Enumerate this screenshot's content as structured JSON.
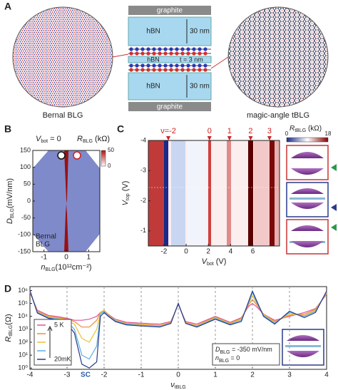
{
  "panel_labels": [
    "A",
    "B",
    "C",
    "D"
  ],
  "panel_a": {
    "top": "graphite",
    "layer1": "hBN",
    "thick1": "30 nm",
    "spacer": "hBN",
    "spacer_thick": "t = 3 nm",
    "layer2": "hBN",
    "thick2": "30 nm",
    "bottom": "graphite",
    "left_caption": "Bernal BLG",
    "right_caption": "magic-angle tBLG"
  },
  "chart_data": [
    {
      "type": "heatmap",
      "title": {
        "main": "V",
        "sub": "bot",
        "rest": " = 0"
      },
      "colorbar_label": {
        "main": "R",
        "sub": "BLG",
        "rest": " (kΩ)"
      },
      "colorbar_lim": [
        0,
        50
      ],
      "colorbar_ticks": [
        0,
        50
      ],
      "annotation_lines": [
        "Bernal",
        "BLG"
      ],
      "x_label": {
        "main": "n",
        "sub": "BLG",
        "rest": "(10¹²cm⁻²)"
      },
      "y_label": {
        "main": "D",
        "sub": "BLG",
        "rest": "(mV/nm)"
      },
      "xlim": [
        -1.5,
        1.5
      ],
      "xticks": [
        -1,
        0,
        1
      ],
      "ylim": [
        -150,
        150
      ],
      "yticks": [
        -150,
        -100,
        -50,
        0,
        50,
        100,
        150
      ]
    },
    {
      "type": "heatmap",
      "colorbar_label": {
        "main": "R",
        "sub": "tBLG",
        "rest": " (kΩ)"
      },
      "colorbar_lim": [
        0,
        18
      ],
      "colorbar_ticks": [
        0,
        18
      ],
      "x_label": {
        "main": "V",
        "sub": "bot",
        "rest": " (V)"
      },
      "y_label": {
        "main": "V",
        "sub": "top",
        "rest": " (V)"
      },
      "xlim": [
        -3.4,
        8.4
      ],
      "xticks": [
        -2,
        0,
        2,
        4,
        6
      ],
      "ylim": [
        -0.5,
        -4
      ],
      "yticks": [
        -1,
        -2,
        -3,
        -4
      ],
      "filling_annotations": [
        {
          "text": "ν=-2",
          "x": -1.6
        },
        {
          "text": "0",
          "x": 2.1
        },
        {
          "text": "1",
          "x": 3.9
        },
        {
          "text": "2",
          "x": 5.8
        },
        {
          "text": "3",
          "x": 7.5
        }
      ]
    },
    {
      "type": "line",
      "x_label": {
        "main": "ν",
        "sub": "tBLG"
      },
      "y_label": {
        "main": "R",
        "sub": "tBLG",
        "rest": "(Ω)"
      },
      "xlim": [
        -4,
        4
      ],
      "xticks": [
        -4,
        -3,
        -2,
        -1,
        0,
        1,
        2,
        3,
        4
      ],
      "ylim": [
        0.8,
        2000000
      ],
      "yscale": "log",
      "yticks": [
        {
          "value": 1,
          "label": "10⁰"
        },
        {
          "value": 10,
          "label": "10¹"
        },
        {
          "value": 100,
          "label": "10²"
        },
        {
          "value": 1000,
          "label": "10³"
        },
        {
          "value": 10000,
          "label": "10⁴"
        },
        {
          "value": 100000,
          "label": "10⁵"
        },
        {
          "value": 1000000,
          "label": "10⁶"
        }
      ],
      "vlines": [
        -3,
        -2,
        -1,
        0,
        1,
        2,
        3
      ],
      "annotation": "SC",
      "annotation_x": -2.5,
      "note": [
        {
          "main": "D",
          "sub": "BLG",
          "rest": " = -350 mV/nm"
        },
        {
          "main": "n",
          "sub": "BLG",
          "rest": " = 0"
        }
      ],
      "x": [
        -4,
        -3.8,
        -3.5,
        -3.2,
        -3,
        -2.8,
        -2.6,
        -2.4,
        -2.2,
        -2.1,
        -2,
        -1.9,
        -1.7,
        -1.4,
        -1,
        -0.5,
        -0.2,
        0,
        0.2,
        0.5,
        1,
        1.4,
        1.7,
        1.9,
        2,
        2.1,
        2.3,
        2.6,
        3,
        3.4,
        3.7,
        4
      ],
      "series": [
        {
          "name": "5 K",
          "color": "#e0559a",
          "values": [
            700000,
            30000,
            12000,
            9000,
            7000,
            5000,
            5000,
            6000,
            10000,
            20000,
            30000,
            15000,
            6000,
            3500,
            3000,
            2500,
            4000,
            80000,
            4000,
            2500,
            10000,
            3500,
            8000,
            60000,
            100000,
            60000,
            15000,
            5000,
            10000,
            20000,
            40000,
            500000
          ]
        },
        {
          "color": "#f08a3c",
          "values": [
            800000,
            25000,
            10000,
            8000,
            6000,
            4000,
            1500,
            1500,
            5000,
            20000,
            30000,
            14000,
            5000,
            3000,
            2500,
            2000,
            3500,
            90000,
            3500,
            2000,
            9000,
            3000,
            7000,
            80000,
            200000,
            90000,
            15000,
            4000,
            12000,
            15000,
            35000,
            600000
          ]
        },
        {
          "color": "#e8c23a",
          "values": [
            900000,
            22000,
            9000,
            7000,
            5000,
            2500,
            200,
            100,
            1000,
            18000,
            30000,
            13000,
            5000,
            2800,
            2200,
            1800,
            3200,
            100000,
            3200,
            1800,
            8000,
            2800,
            6000,
            100000,
            400000,
            120000,
            14000,
            3500,
            15000,
            12000,
            30000,
            700000
          ]
        },
        {
          "color": "#5aaee0",
          "values": [
            1000000,
            20000,
            8000,
            6000,
            4000,
            1000,
            10,
            5,
            50,
            15000,
            25000,
            12000,
            4500,
            2500,
            2000,
            1600,
            3000,
            100000,
            3000,
            1600,
            7000,
            2500,
            5000,
            120000,
            700000,
            150000,
            12000,
            3000,
            20000,
            10000,
            25000,
            800000
          ]
        },
        {
          "name": "20mK",
          "color": "#283a8c",
          "values": [
            1000000,
            18000,
            7000,
            5000,
            3000,
            500,
            2,
            1,
            3,
            10000,
            20000,
            11000,
            4000,
            2200,
            1800,
            1500,
            2800,
            100000,
            2800,
            1500,
            6000,
            2200,
            4000,
            150000,
            900000,
            200000,
            10000,
            2500,
            25000,
            8000,
            20000,
            900000
          ]
        }
      ]
    }
  ]
}
